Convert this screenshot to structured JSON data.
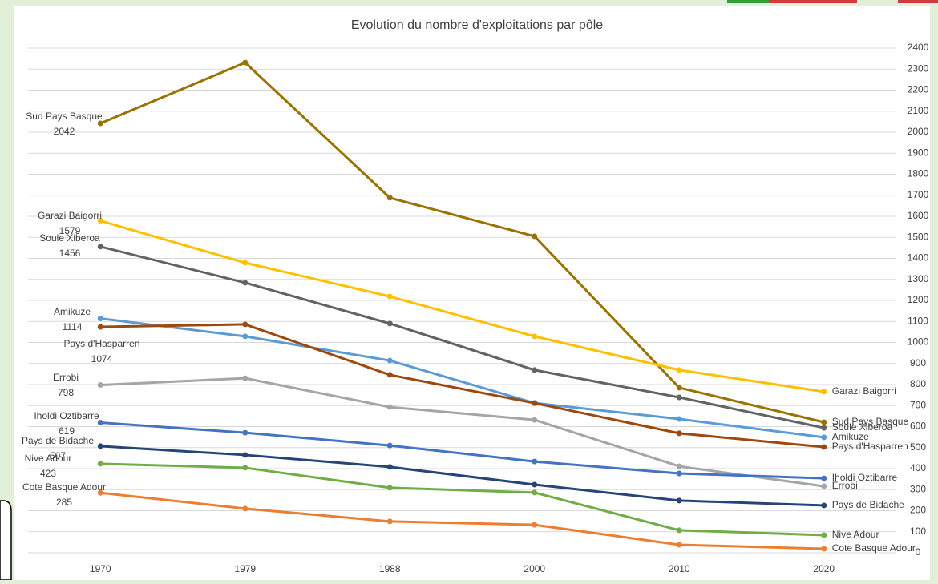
{
  "chart_data": {
    "type": "line",
    "title": "Evolution du nombre d'exploitations par pôle",
    "categories": [
      "1970",
      "1979",
      "1988",
      "2000",
      "2010",
      "2020"
    ],
    "ylim": [
      0,
      2400
    ],
    "yticks": [
      0,
      100,
      200,
      300,
      400,
      500,
      600,
      700,
      800,
      900,
      1000,
      1100,
      1200,
      1300,
      1400,
      1500,
      1600,
      1700,
      1800,
      1900,
      2000,
      2100,
      2200,
      2300,
      2400
    ],
    "grid": true,
    "series": [
      {
        "name": "Sud Pays Basque",
        "color": "#997300",
        "values": [
          2042,
          2331,
          1688,
          1505,
          785,
          621
        ]
      },
      {
        "name": "Garazi Baigorri",
        "color": "#ffc000",
        "values": [
          1579,
          1379,
          1219,
          1029,
          869,
          766
        ]
      },
      {
        "name": "Soule Xiberoa",
        "color": "#636363",
        "values": [
          1456,
          1284,
          1090,
          869,
          739,
          594
        ]
      },
      {
        "name": "Amikuze",
        "color": "#5b9bd5",
        "values": [
          1114,
          1029,
          914,
          712,
          636,
          549
        ]
      },
      {
        "name": "Pays d'Hasparren",
        "color": "#9e480e",
        "values": [
          1074,
          1086,
          846,
          712,
          568,
          503
        ]
      },
      {
        "name": "Errobi",
        "color": "#a5a5a5",
        "values": [
          798,
          830,
          693,
          632,
          411,
          316
        ]
      },
      {
        "name": "Iholdi Oztibarre",
        "color": "#4472c4",
        "values": [
          619,
          571,
          510,
          434,
          377,
          354
        ]
      },
      {
        "name": "Pays de Bidache",
        "color": "#264478",
        "values": [
          507,
          465,
          408,
          324,
          248,
          225
        ]
      },
      {
        "name": "Nive Adour",
        "color": "#70ad47",
        "values": [
          423,
          404,
          309,
          286,
          107,
          84
        ]
      },
      {
        "name": "Cote Basque Adour",
        "color": "#ed7d31",
        "values": [
          285,
          210,
          149,
          133,
          38,
          19
        ]
      }
    ]
  }
}
